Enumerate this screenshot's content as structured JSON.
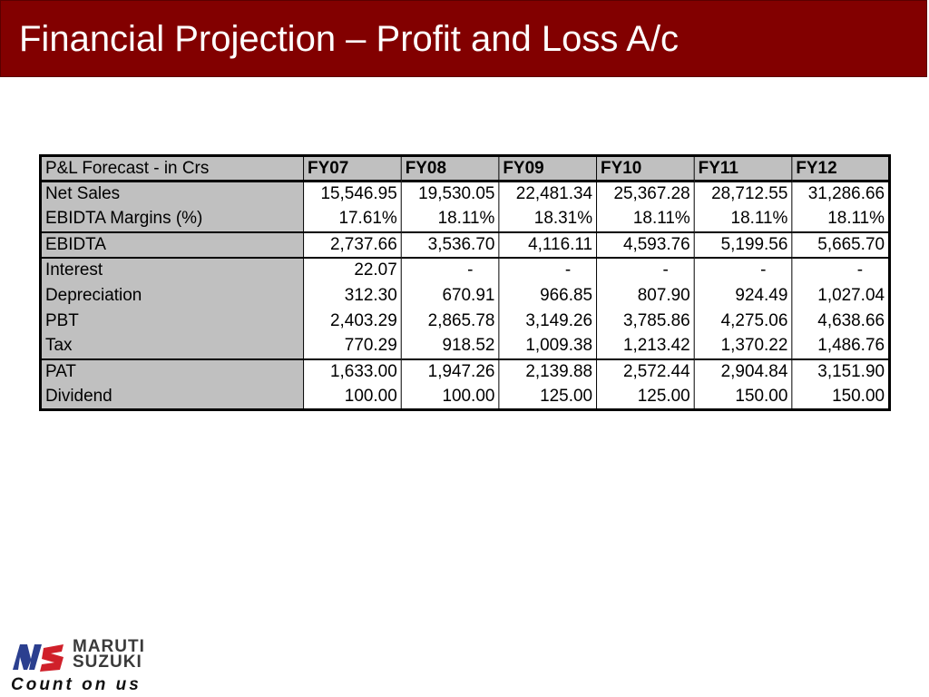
{
  "slide": {
    "title": "Financial Projection – Profit and Loss A/c"
  },
  "table": {
    "corner_label": "P&L Forecast - in Crs",
    "columns": [
      "FY07",
      "FY08",
      "FY09",
      "FY10",
      "FY11",
      "FY12"
    ],
    "rows": [
      {
        "label": "Net Sales",
        "values": [
          "15,546.95",
          "19,530.05",
          "22,481.34",
          "25,367.28",
          "28,712.55",
          "31,286.66"
        ]
      },
      {
        "label": "EBIDTA Margins (%)",
        "values": [
          "17.61%",
          "18.11%",
          "18.31%",
          "18.11%",
          "18.11%",
          "18.11%"
        ]
      },
      {
        "label": "EBIDTA",
        "values": [
          "2,737.66",
          "3,536.70",
          "4,116.11",
          "4,593.76",
          "5,199.56",
          "5,665.70"
        ]
      },
      {
        "label": "Interest",
        "values": [
          "22.07",
          "-",
          "-",
          "-",
          "-",
          "-"
        ]
      },
      {
        "label": "Depreciation",
        "values": [
          "312.30",
          "670.91",
          "966.85",
          "807.90",
          "924.49",
          "1,027.04"
        ]
      },
      {
        "label": "PBT",
        "values": [
          "2,403.29",
          "2,865.78",
          "3,149.26",
          "3,785.86",
          "4,275.06",
          "4,638.66"
        ]
      },
      {
        "label": "Tax",
        "values": [
          "770.29",
          "918.52",
          "1,009.38",
          "1,213.42",
          "1,370.22",
          "1,486.76"
        ]
      },
      {
        "label": "PAT",
        "values": [
          "1,633.00",
          "1,947.26",
          "2,139.88",
          "2,572.44",
          "2,904.84",
          "3,151.90"
        ]
      },
      {
        "label": "Dividend",
        "values": [
          "100.00",
          "100.00",
          "125.00",
          "125.00",
          "150.00",
          "150.00"
        ]
      }
    ]
  },
  "logo": {
    "brand_line1": "MARUTI",
    "brand_line2": "SUZUKI",
    "tagline": "Count on us",
    "colors": {
      "red": "#d0202a",
      "blue": "#2b3f8f",
      "gray": "#3a3a3a"
    }
  },
  "colors": {
    "title_bar": "#820000",
    "title_text": "#ffffff",
    "label_cell": "#c0c0c0",
    "value_cell": "#ffffff"
  }
}
